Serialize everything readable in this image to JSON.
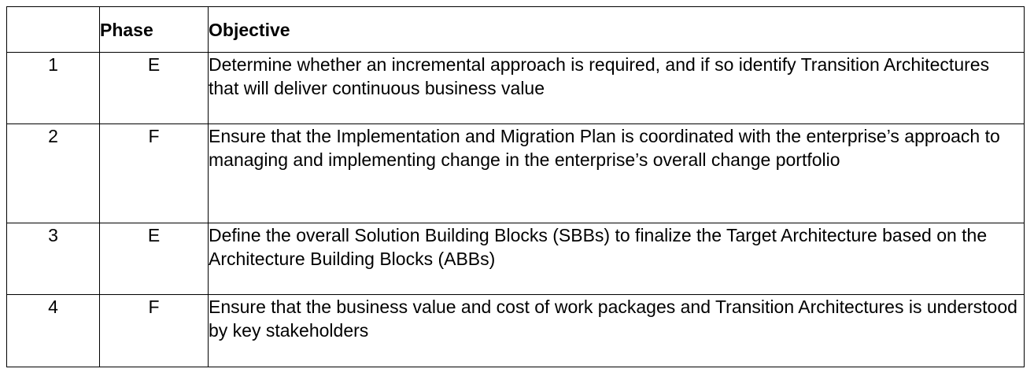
{
  "table": {
    "headers": {
      "number": "",
      "phase": "Phase",
      "objective": "Objective"
    },
    "rows": [
      {
        "number": "1",
        "phase": "E",
        "objective": "Determine whether an incremental approach is required, and if so identify Transition Architectures that will deliver continuous business value"
      },
      {
        "number": "2",
        "phase": "F",
        "objective": "Ensure that the Implementation and Migration Plan is coordinated with the enterprise’s approach to managing and implementing change in the enterprise’s overall change portfolio"
      },
      {
        "number": "3",
        "phase": "E",
        "objective": "Define the overall Solution Building Blocks (SBBs) to finalize the Target Architecture based on the Architecture Building Blocks (ABBs)"
      },
      {
        "number": "4",
        "phase": "F",
        "objective": "Ensure that the business value and cost of work packages and Transition Architectures is understood by key stakeholders"
      }
    ]
  }
}
